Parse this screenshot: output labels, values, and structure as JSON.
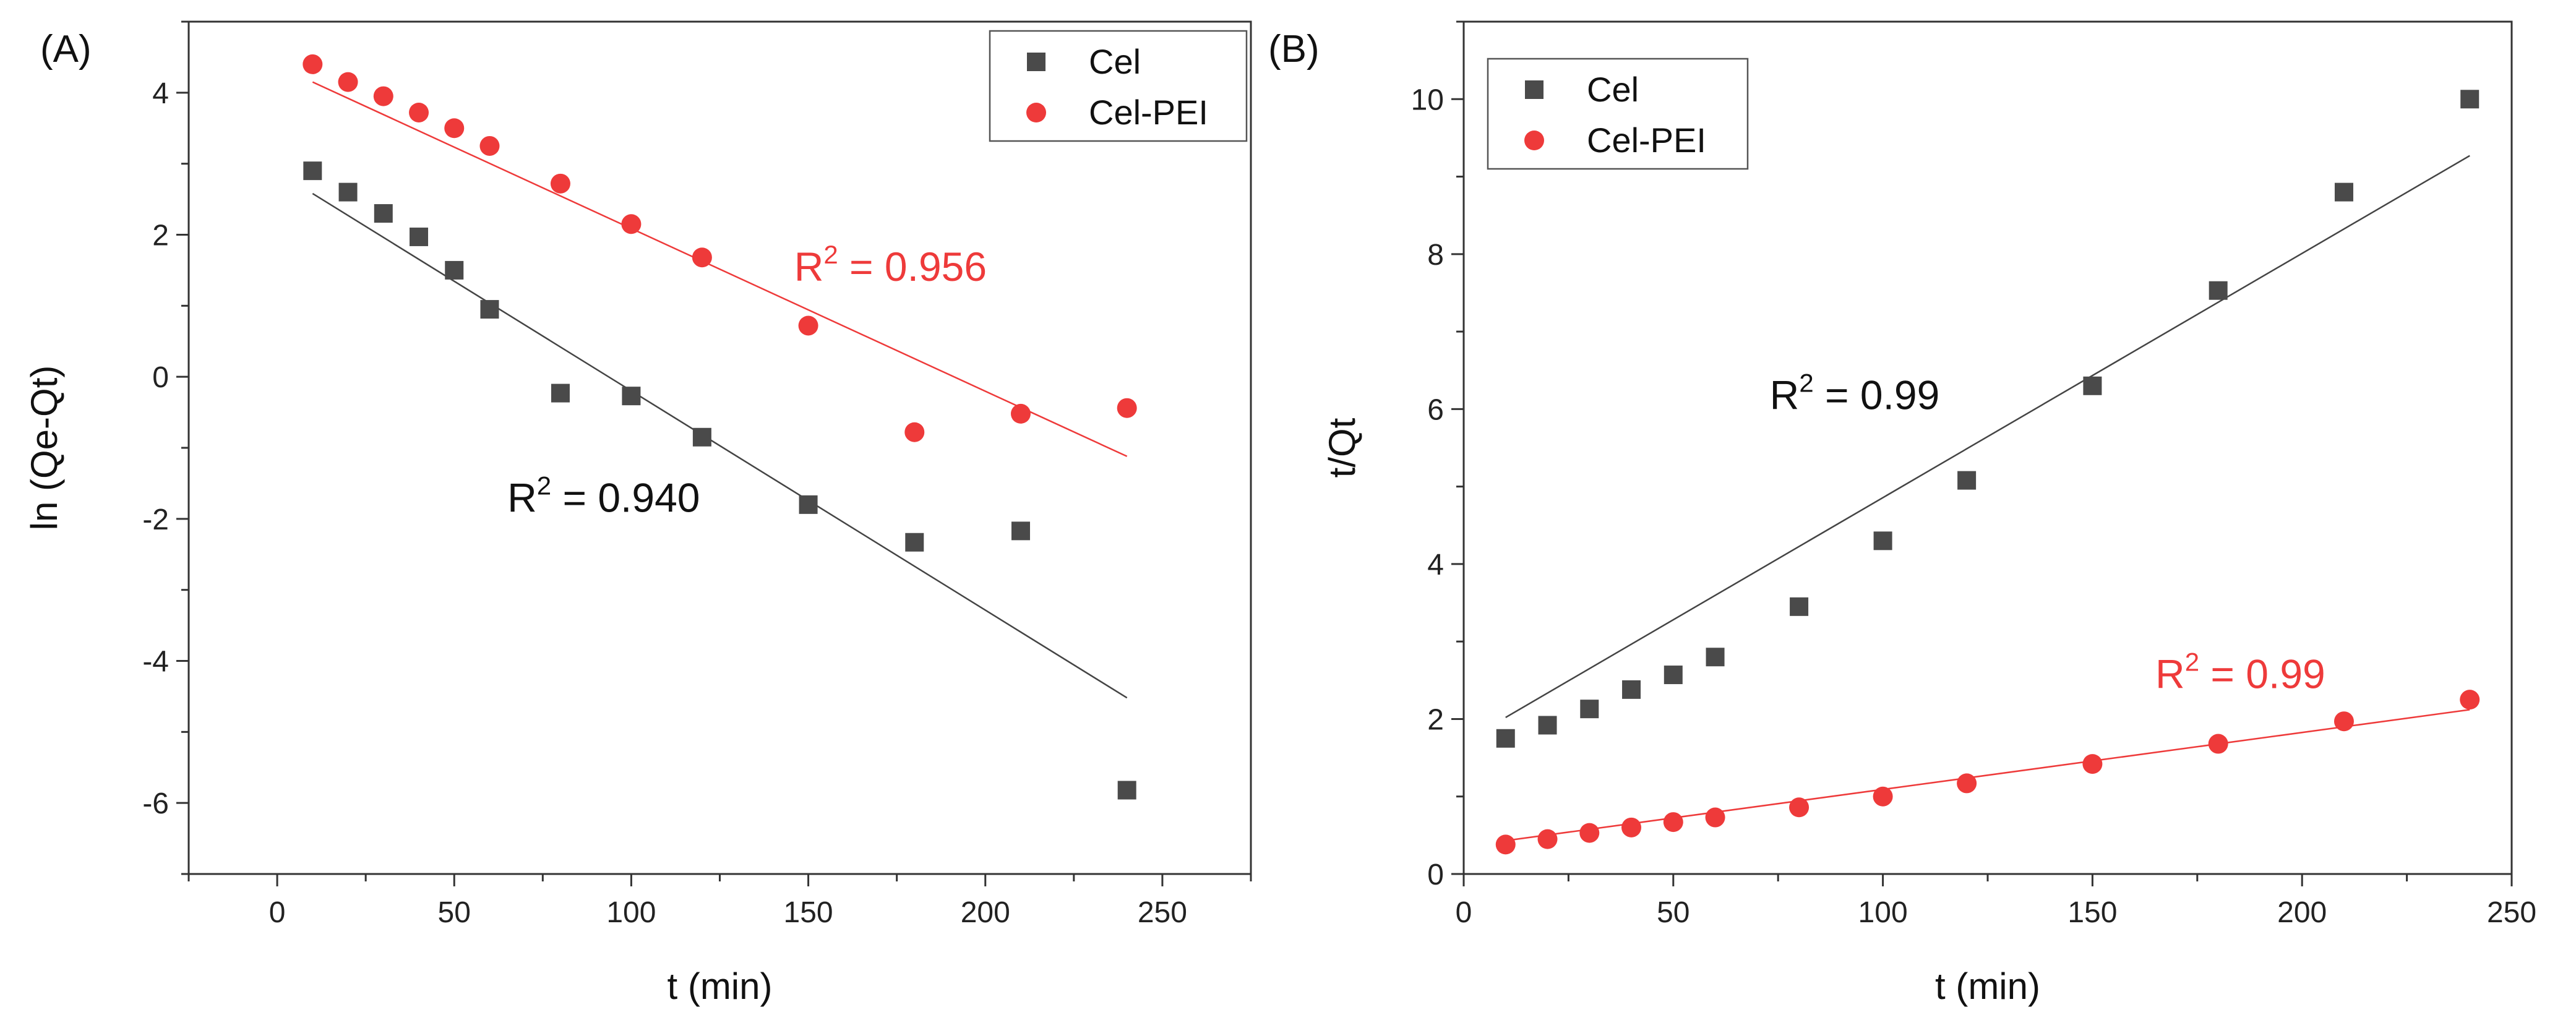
{
  "colors": {
    "cel": "#4a4a4a",
    "cel_pei": "#ee3a3a",
    "cel_fit": "#444444",
    "cel_pei_fit": "#ee3a3a",
    "axis": "#333333"
  },
  "chart_data": [
    {
      "id": "A",
      "type": "scatter",
      "panel_label": "(A)",
      "xlabel": "t (min)",
      "ylabel": "ln (Qe-Qt)",
      "xlim": [
        -25,
        275
      ],
      "ylim": [
        -7,
        5
      ],
      "xticks": [
        0,
        50,
        100,
        150,
        200,
        250
      ],
      "yticks": [
        -6,
        -4,
        -2,
        0,
        2,
        4
      ],
      "grid": false,
      "legend_position": "top-right",
      "series": [
        {
          "name": "Cel",
          "key": "cel",
          "marker": "square",
          "x": [
            10,
            20,
            30,
            40,
            50,
            60,
            80,
            100,
            120,
            150,
            180,
            210,
            240
          ],
          "y": [
            2.9,
            2.6,
            2.3,
            1.97,
            1.5,
            0.95,
            -0.23,
            -0.27,
            -0.85,
            -1.8,
            -2.33,
            -2.17,
            -5.82
          ],
          "fit": {
            "x": [
              10,
              240
            ],
            "y": [
              2.58,
              -4.52
            ]
          },
          "annotation": {
            "base": "R",
            "sup": "2",
            "rest": " = 0.940",
            "x": 65,
            "y": -1.9
          }
        },
        {
          "name": "Cel-PEI",
          "key": "cel_pei",
          "marker": "circle",
          "x": [
            10,
            20,
            30,
            40,
            50,
            60,
            80,
            100,
            120,
            150,
            180,
            210,
            240
          ],
          "y": [
            4.4,
            4.15,
            3.95,
            3.72,
            3.5,
            3.25,
            2.72,
            2.15,
            1.68,
            0.72,
            -0.78,
            -0.52,
            -0.44
          ],
          "fit": {
            "x": [
              10,
              240
            ],
            "y": [
              4.15,
              -1.12
            ]
          },
          "annotation": {
            "base": "R",
            "sup": "2",
            "rest": " = 0.956",
            "x": 146,
            "y": 1.35
          }
        }
      ]
    },
    {
      "id": "B",
      "type": "scatter",
      "panel_label": "(B)",
      "xlabel": "t (min)",
      "ylabel": "t/Qt",
      "xlim": [
        0,
        250
      ],
      "ylim": [
        0,
        11
      ],
      "xticks": [
        0,
        50,
        100,
        150,
        200,
        250
      ],
      "yticks": [
        0,
        2,
        4,
        6,
        8,
        10
      ],
      "grid": false,
      "legend_position": "top-left",
      "series": [
        {
          "name": "Cel",
          "key": "cel",
          "marker": "square",
          "x": [
            10,
            20,
            30,
            40,
            50,
            60,
            80,
            100,
            120,
            150,
            180,
            210,
            240
          ],
          "y": [
            1.75,
            1.92,
            2.13,
            2.38,
            2.57,
            2.8,
            3.45,
            4.3,
            5.08,
            6.3,
            7.53,
            8.8,
            10.0
          ],
          "fit": {
            "x": [
              10,
              240
            ],
            "y": [
              2.02,
              9.27
            ]
          },
          "annotation": {
            "base": "R",
            "sup": "2",
            "rest": " = 0.99",
            "x": 73,
            "y": 6.0
          }
        },
        {
          "name": "Cel-PEI",
          "key": "cel_pei",
          "marker": "circle",
          "x": [
            10,
            20,
            30,
            40,
            50,
            60,
            80,
            100,
            120,
            150,
            180,
            210,
            240
          ],
          "y": [
            0.38,
            0.45,
            0.53,
            0.6,
            0.67,
            0.73,
            0.86,
            1.0,
            1.17,
            1.42,
            1.68,
            1.97,
            2.25
          ],
          "fit": {
            "x": [
              10,
              240
            ],
            "y": [
              0.43,
              2.12
            ]
          },
          "annotation": {
            "base": "R",
            "sup": "2",
            "rest": " = 0.99",
            "x": 165,
            "y": 2.4
          }
        }
      ]
    }
  ]
}
